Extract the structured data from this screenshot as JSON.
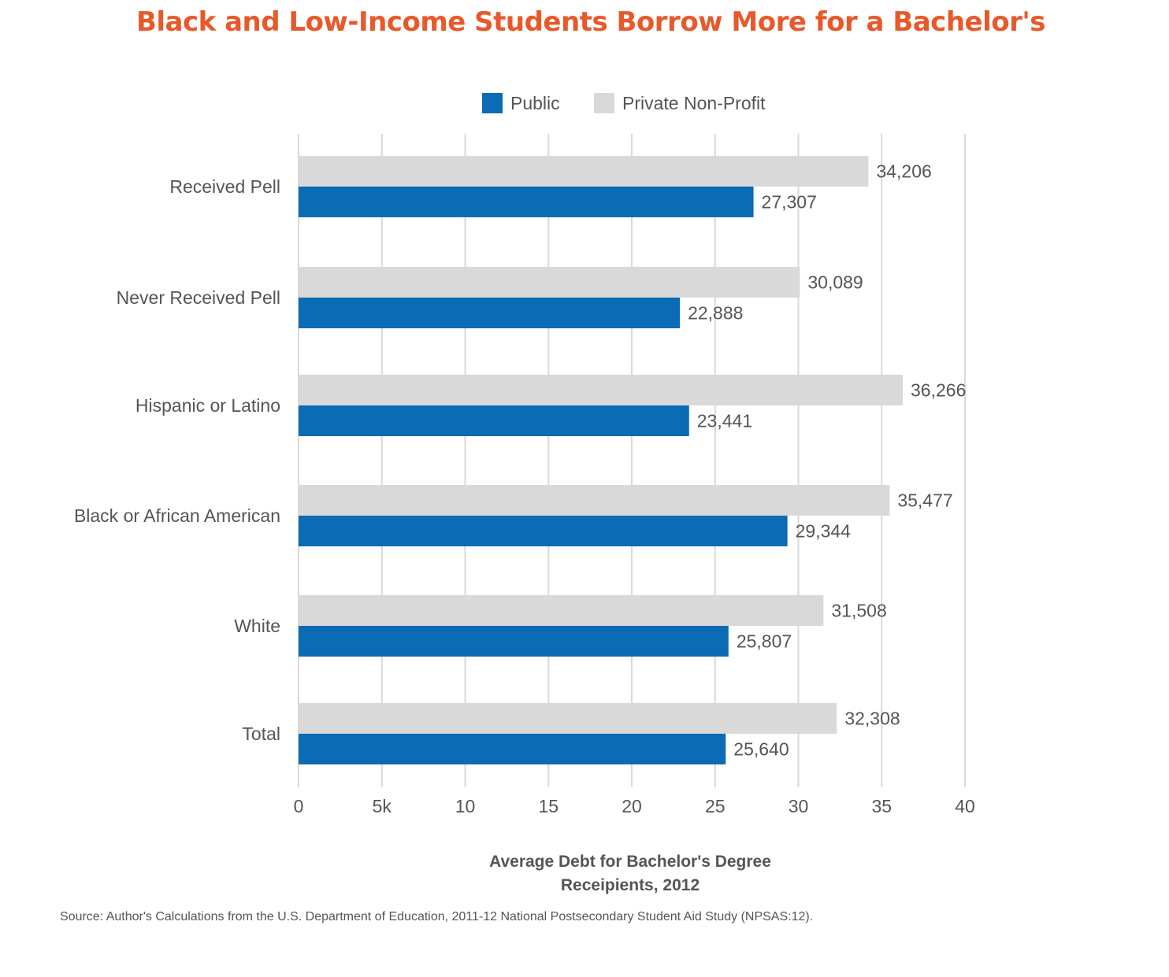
{
  "chart_data": {
    "type": "bar",
    "orientation": "horizontal",
    "title": "Black and Low-Income Students Borrow More for a Bachelor's",
    "xlabel_line1": "Average Debt for Bachelor's Degree",
    "xlabel_line2": "Receipients, 2012",
    "source": "Source: Author's Calculations from the U.S. Department of Education, 2011-12 National Postsecondary Student Aid Study (NPSAS:12).",
    "categories": [
      "Received Pell",
      "Never Received Pell",
      "Hispanic or Latino",
      "Black or African American",
      "White",
      "Total"
    ],
    "series": [
      {
        "name": "Public",
        "color": "#0c6bb5",
        "values": [
          27307,
          22888,
          23441,
          29344,
          25807,
          25640
        ],
        "labels": [
          "27,307",
          "22,888",
          "23,441",
          "29,344",
          "25,807",
          "25,640"
        ]
      },
      {
        "name": "Private Non-Profit",
        "color": "#d9d9d9",
        "values": [
          34206,
          30089,
          36266,
          35477,
          31508,
          32308
        ],
        "labels": [
          "34,206",
          "30,089",
          "36,266",
          "35,477",
          "31,508",
          "32,308"
        ]
      }
    ],
    "xlim": [
      0,
      40000
    ],
    "xticks": [
      0,
      5000,
      10000,
      15000,
      20000,
      25000,
      30000,
      35000,
      40000
    ],
    "xtick_labels": [
      "0",
      "5k",
      "10",
      "15",
      "20",
      "25",
      "30",
      "35",
      "40"
    ],
    "grid": true,
    "legend_position": "top-center"
  }
}
